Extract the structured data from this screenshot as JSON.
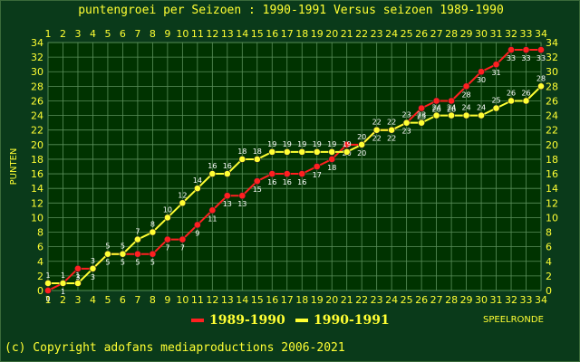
{
  "title": "puntengroei per Seizoen : 1990-1991 Versus seizoen 1989-1990",
  "copyright": "(c) Copyright adofans mediaproductions 2006-2021",
  "chart_data": {
    "type": "line",
    "title": "puntengroei per Seizoen : 1990-1991 Versus seizoen 1989-1990",
    "xlabel": "SPEELRONDE",
    "ylabel": "PUNTEN",
    "x": [
      1,
      2,
      3,
      4,
      5,
      6,
      7,
      8,
      9,
      10,
      11,
      12,
      13,
      14,
      15,
      16,
      17,
      18,
      19,
      20,
      21,
      22,
      23,
      24,
      25,
      26,
      27,
      28,
      29,
      30,
      31,
      32,
      33,
      34
    ],
    "xlim": [
      1,
      34
    ],
    "ylim": [
      0,
      34
    ],
    "yticks": [
      0,
      2,
      4,
      6,
      8,
      10,
      12,
      14,
      16,
      18,
      20,
      22,
      24,
      26,
      28,
      30,
      32,
      34
    ],
    "grid": true,
    "series": [
      {
        "name": "1989-1990",
        "color": "#ff2020",
        "values": [
          0,
          1,
          3,
          3,
          5,
          5,
          5,
          5,
          7,
          7,
          9,
          11,
          13,
          13,
          15,
          16,
          16,
          16,
          17,
          18,
          20,
          20,
          22,
          22,
          23,
          25,
          26,
          26,
          28,
          30,
          31,
          33,
          33,
          33
        ]
      },
      {
        "name": "1990-1991",
        "color": "#ffff33",
        "values": [
          1,
          1,
          1,
          3,
          5,
          5,
          7,
          8,
          10,
          12,
          14,
          16,
          16,
          18,
          18,
          19,
          19,
          19,
          19,
          19,
          19,
          20,
          22,
          22,
          23,
          23,
          24,
          24,
          24,
          24,
          25,
          26,
          26,
          28
        ]
      }
    ]
  }
}
